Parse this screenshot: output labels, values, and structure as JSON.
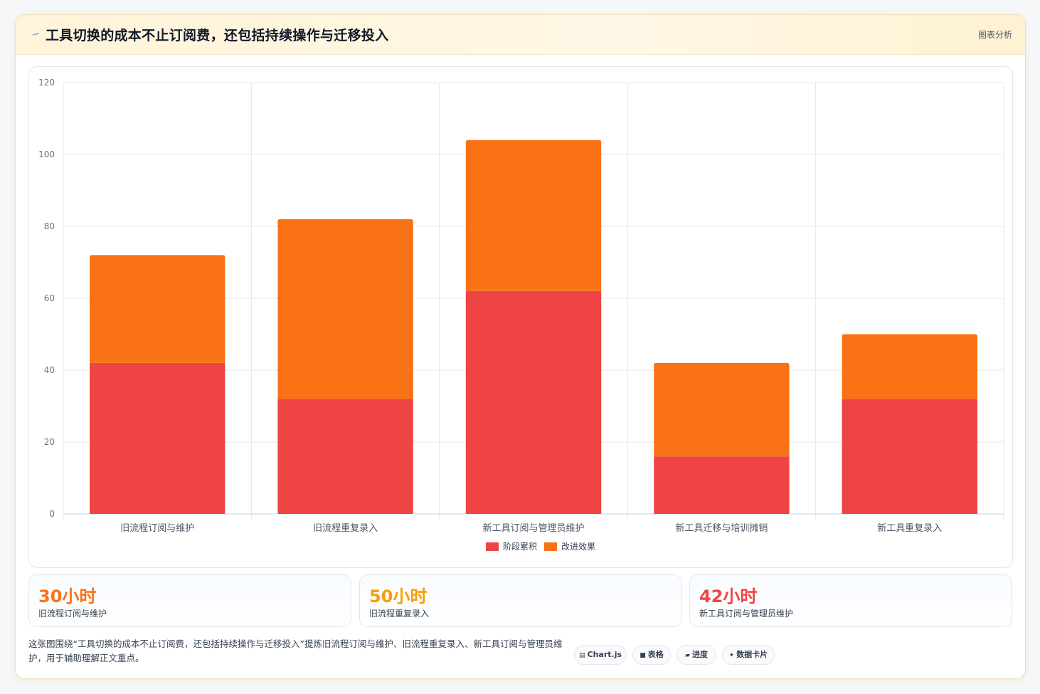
{
  "header": {
    "icon": "lightning-icon",
    "title": "工具切换的成本不止订阅费，还包括持续操作与迁移投入",
    "right_label": "图表分析"
  },
  "chart_data": {
    "type": "bar",
    "stacked": true,
    "categories": [
      "旧流程订阅与维护",
      "旧流程重复录入",
      "新工具订阅与管理员维护",
      "新工具迁移与培训摊销",
      "新工具重复录入"
    ],
    "series": [
      {
        "name": "阶段累积",
        "color": "#ef4444",
        "values": [
          42,
          32,
          62,
          16,
          32
        ]
      },
      {
        "name": "改进效果",
        "color": "#f97316",
        "values": [
          30,
          50,
          42,
          26,
          18
        ]
      }
    ],
    "ylim": [
      0,
      120
    ],
    "yticks": [
      0,
      20,
      40,
      60,
      80,
      100,
      120
    ],
    "grid": true,
    "legend_position": "bottom"
  },
  "stats": [
    {
      "value": "30小时",
      "label": "旧流程订阅与维护",
      "color": "#f97316"
    },
    {
      "value": "50小时",
      "label": "旧流程重复录入",
      "color": "#f59e0b"
    },
    {
      "value": "42小时",
      "label": "新工具订阅与管理员维护",
      "color": "#ef4444"
    }
  ],
  "footer": {
    "description": "这张图围绕“工具切换的成本不止订阅费，还包括持续操作与迁移投入”提炼旧流程订阅与维护、旧流程重复录入、新工具订阅与管理员维护，用于辅助理解正文重点。"
  },
  "pills": [
    {
      "icon": "chart-icon",
      "glyph": "▤",
      "label": "Chart.js"
    },
    {
      "icon": "table-icon",
      "glyph": "■",
      "label": "表格"
    },
    {
      "icon": "progress-icon",
      "glyph": "▰",
      "label": "进度"
    },
    {
      "icon": "sparkle-icon",
      "glyph": "✦",
      "label": "数据卡片"
    }
  ]
}
